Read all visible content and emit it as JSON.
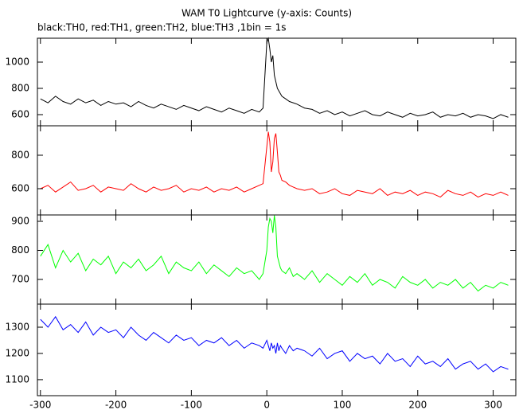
{
  "chart_data": [
    {
      "type": "line",
      "title": "WAM T0 Lightcurve (y-axis: Counts)",
      "subtitle": "black:TH0, red:TH1, green:TH2, blue:TH3 ,1bin = 1s",
      "color": "#000000",
      "x": [
        -300,
        -290,
        -280,
        -270,
        -260,
        -250,
        -240,
        -230,
        -220,
        -210,
        -200,
        -190,
        -180,
        -170,
        -160,
        -150,
        -140,
        -130,
        -120,
        -110,
        -100,
        -90,
        -80,
        -70,
        -60,
        -50,
        -40,
        -30,
        -20,
        -10,
        -5,
        0,
        2,
        4,
        6,
        8,
        10,
        12,
        14,
        16,
        18,
        20,
        25,
        30,
        35,
        40,
        50,
        60,
        70,
        80,
        90,
        100,
        110,
        120,
        130,
        140,
        150,
        160,
        170,
        180,
        190,
        200,
        210,
        220,
        230,
        240,
        250,
        260,
        270,
        280,
        290,
        300,
        310,
        320
      ],
      "values": [
        720,
        690,
        740,
        700,
        680,
        720,
        690,
        710,
        670,
        700,
        680,
        690,
        660,
        700,
        670,
        650,
        680,
        660,
        640,
        670,
        650,
        630,
        660,
        640,
        620,
        650,
        630,
        610,
        640,
        620,
        650,
        1150,
        1180,
        1100,
        1000,
        1050,
        900,
        850,
        800,
        780,
        760,
        740,
        720,
        700,
        690,
        680,
        650,
        640,
        610,
        630,
        600,
        620,
        590,
        610,
        630,
        600,
        590,
        620,
        600,
        580,
        610,
        590,
        600,
        620,
        580,
        600,
        590,
        610,
        580,
        600,
        590,
        570,
        600,
        580
      ],
      "xlim": [
        -304,
        330
      ],
      "ylim": [
        515,
        1182
      ],
      "yticks": [
        600,
        800,
        1000
      ]
    },
    {
      "type": "line",
      "color": "#ff0000",
      "x": [
        -300,
        -290,
        -280,
        -270,
        -260,
        -250,
        -240,
        -230,
        -220,
        -210,
        -200,
        -190,
        -180,
        -170,
        -160,
        -150,
        -140,
        -130,
        -120,
        -110,
        -100,
        -90,
        -80,
        -70,
        -60,
        -50,
        -40,
        -30,
        -20,
        -10,
        -5,
        0,
        2,
        4,
        6,
        8,
        10,
        12,
        14,
        16,
        18,
        20,
        25,
        30,
        35,
        40,
        50,
        60,
        70,
        80,
        90,
        100,
        110,
        120,
        130,
        140,
        150,
        160,
        170,
        180,
        190,
        200,
        210,
        220,
        230,
        240,
        250,
        260,
        270,
        280,
        290,
        300,
        310,
        320
      ],
      "values": [
        600,
        620,
        580,
        610,
        640,
        590,
        600,
        620,
        580,
        610,
        600,
        590,
        630,
        600,
        580,
        610,
        590,
        600,
        620,
        580,
        600,
        590,
        610,
        580,
        600,
        590,
        610,
        580,
        600,
        620,
        630,
        850,
        940,
        880,
        700,
        760,
        900,
        930,
        820,
        700,
        680,
        650,
        640,
        620,
        610,
        600,
        590,
        600,
        570,
        580,
        600,
        570,
        560,
        590,
        580,
        570,
        600,
        560,
        580,
        570,
        590,
        560,
        580,
        570,
        550,
        590,
        570,
        560,
        580,
        550,
        570,
        560,
        580,
        560
      ],
      "xlim": [
        -304,
        330
      ],
      "ylim": [
        443,
        976
      ],
      "yticks": [
        600,
        800
      ]
    },
    {
      "type": "line",
      "color": "#00ff00",
      "x": [
        -300,
        -290,
        -280,
        -270,
        -260,
        -250,
        -240,
        -230,
        -220,
        -210,
        -200,
        -190,
        -180,
        -170,
        -160,
        -150,
        -140,
        -130,
        -120,
        -110,
        -100,
        -90,
        -80,
        -70,
        -60,
        -50,
        -40,
        -30,
        -20,
        -10,
        -5,
        0,
        2,
        4,
        6,
        8,
        10,
        12,
        14,
        16,
        18,
        20,
        25,
        30,
        35,
        40,
        50,
        60,
        70,
        80,
        90,
        100,
        110,
        120,
        130,
        140,
        150,
        160,
        170,
        180,
        190,
        200,
        210,
        220,
        230,
        240,
        250,
        260,
        270,
        280,
        290,
        300,
        310,
        320
      ],
      "values": [
        780,
        820,
        740,
        800,
        760,
        790,
        730,
        770,
        750,
        780,
        720,
        760,
        740,
        770,
        730,
        750,
        780,
        720,
        760,
        740,
        730,
        760,
        720,
        750,
        730,
        710,
        740,
        720,
        730,
        700,
        720,
        800,
        880,
        910,
        900,
        860,
        920,
        880,
        780,
        760,
        740,
        730,
        720,
        740,
        710,
        720,
        700,
        730,
        690,
        720,
        700,
        680,
        710,
        690,
        720,
        680,
        700,
        690,
        670,
        710,
        690,
        680,
        700,
        670,
        690,
        680,
        700,
        670,
        690,
        660,
        680,
        670,
        690,
        680
      ],
      "xlim": [
        -304,
        330
      ],
      "ylim": [
        615,
        922
      ],
      "yticks": [
        700,
        800,
        900
      ]
    },
    {
      "type": "line",
      "color": "#0000ff",
      "x": [
        -300,
        -290,
        -280,
        -270,
        -260,
        -250,
        -240,
        -230,
        -220,
        -210,
        -200,
        -190,
        -180,
        -170,
        -160,
        -150,
        -140,
        -130,
        -120,
        -110,
        -100,
        -90,
        -80,
        -70,
        -60,
        -50,
        -40,
        -30,
        -20,
        -10,
        -5,
        0,
        2,
        4,
        6,
        8,
        10,
        12,
        14,
        16,
        18,
        20,
        25,
        30,
        35,
        40,
        50,
        60,
        70,
        80,
        90,
        100,
        110,
        120,
        130,
        140,
        150,
        160,
        170,
        180,
        190,
        200,
        210,
        220,
        230,
        240,
        250,
        260,
        270,
        280,
        290,
        300,
        310,
        320
      ],
      "values": [
        1330,
        1300,
        1340,
        1290,
        1310,
        1280,
        1320,
        1270,
        1300,
        1280,
        1290,
        1260,
        1300,
        1270,
        1250,
        1280,
        1260,
        1240,
        1270,
        1250,
        1260,
        1230,
        1250,
        1240,
        1260,
        1230,
        1250,
        1220,
        1240,
        1230,
        1220,
        1250,
        1230,
        1210,
        1240,
        1220,
        1230,
        1200,
        1240,
        1210,
        1230,
        1220,
        1200,
        1230,
        1210,
        1220,
        1210,
        1190,
        1220,
        1180,
        1200,
        1210,
        1170,
        1200,
        1180,
        1190,
        1160,
        1200,
        1170,
        1180,
        1150,
        1190,
        1160,
        1170,
        1150,
        1180,
        1140,
        1160,
        1170,
        1140,
        1160,
        1130,
        1150,
        1140
      ],
      "xlim": [
        -304,
        330
      ],
      "ylim": [
        1039,
        1388
      ],
      "yticks": [
        1100,
        1200,
        1300
      ],
      "xticks": [
        -300,
        -200,
        -100,
        0,
        100,
        200,
        300
      ]
    }
  ]
}
